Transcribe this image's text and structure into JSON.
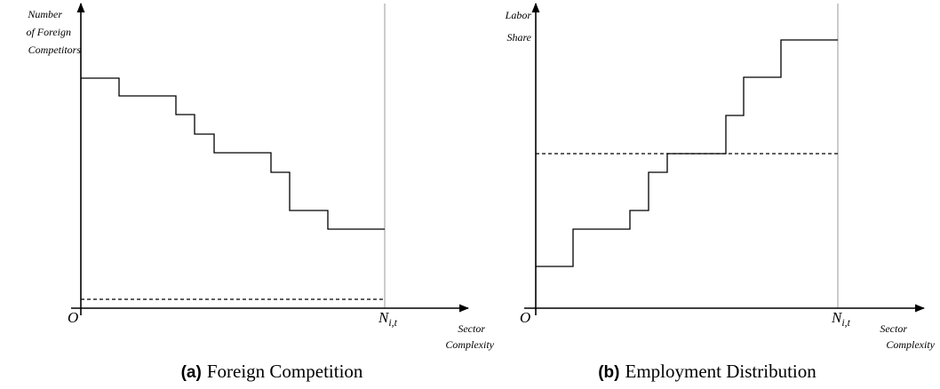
{
  "panels": [
    {
      "y_label": [
        "Number",
        "of Foreign",
        "Competitors"
      ],
      "origin": "O",
      "x_end_label": "N",
      "x_end_sub": "i,t",
      "x_label": [
        "Sector",
        "Complexity"
      ],
      "caption_tag": "(a)",
      "caption": "Foreign Competition"
    },
    {
      "y_label": [
        "Labor",
        "Share"
      ],
      "origin": "O",
      "x_end_label": "N",
      "x_end_sub": "i,t",
      "x_label": [
        "Sector",
        "Complexity"
      ],
      "caption_tag": "(b)",
      "caption": "Employment Distribution"
    }
  ]
}
